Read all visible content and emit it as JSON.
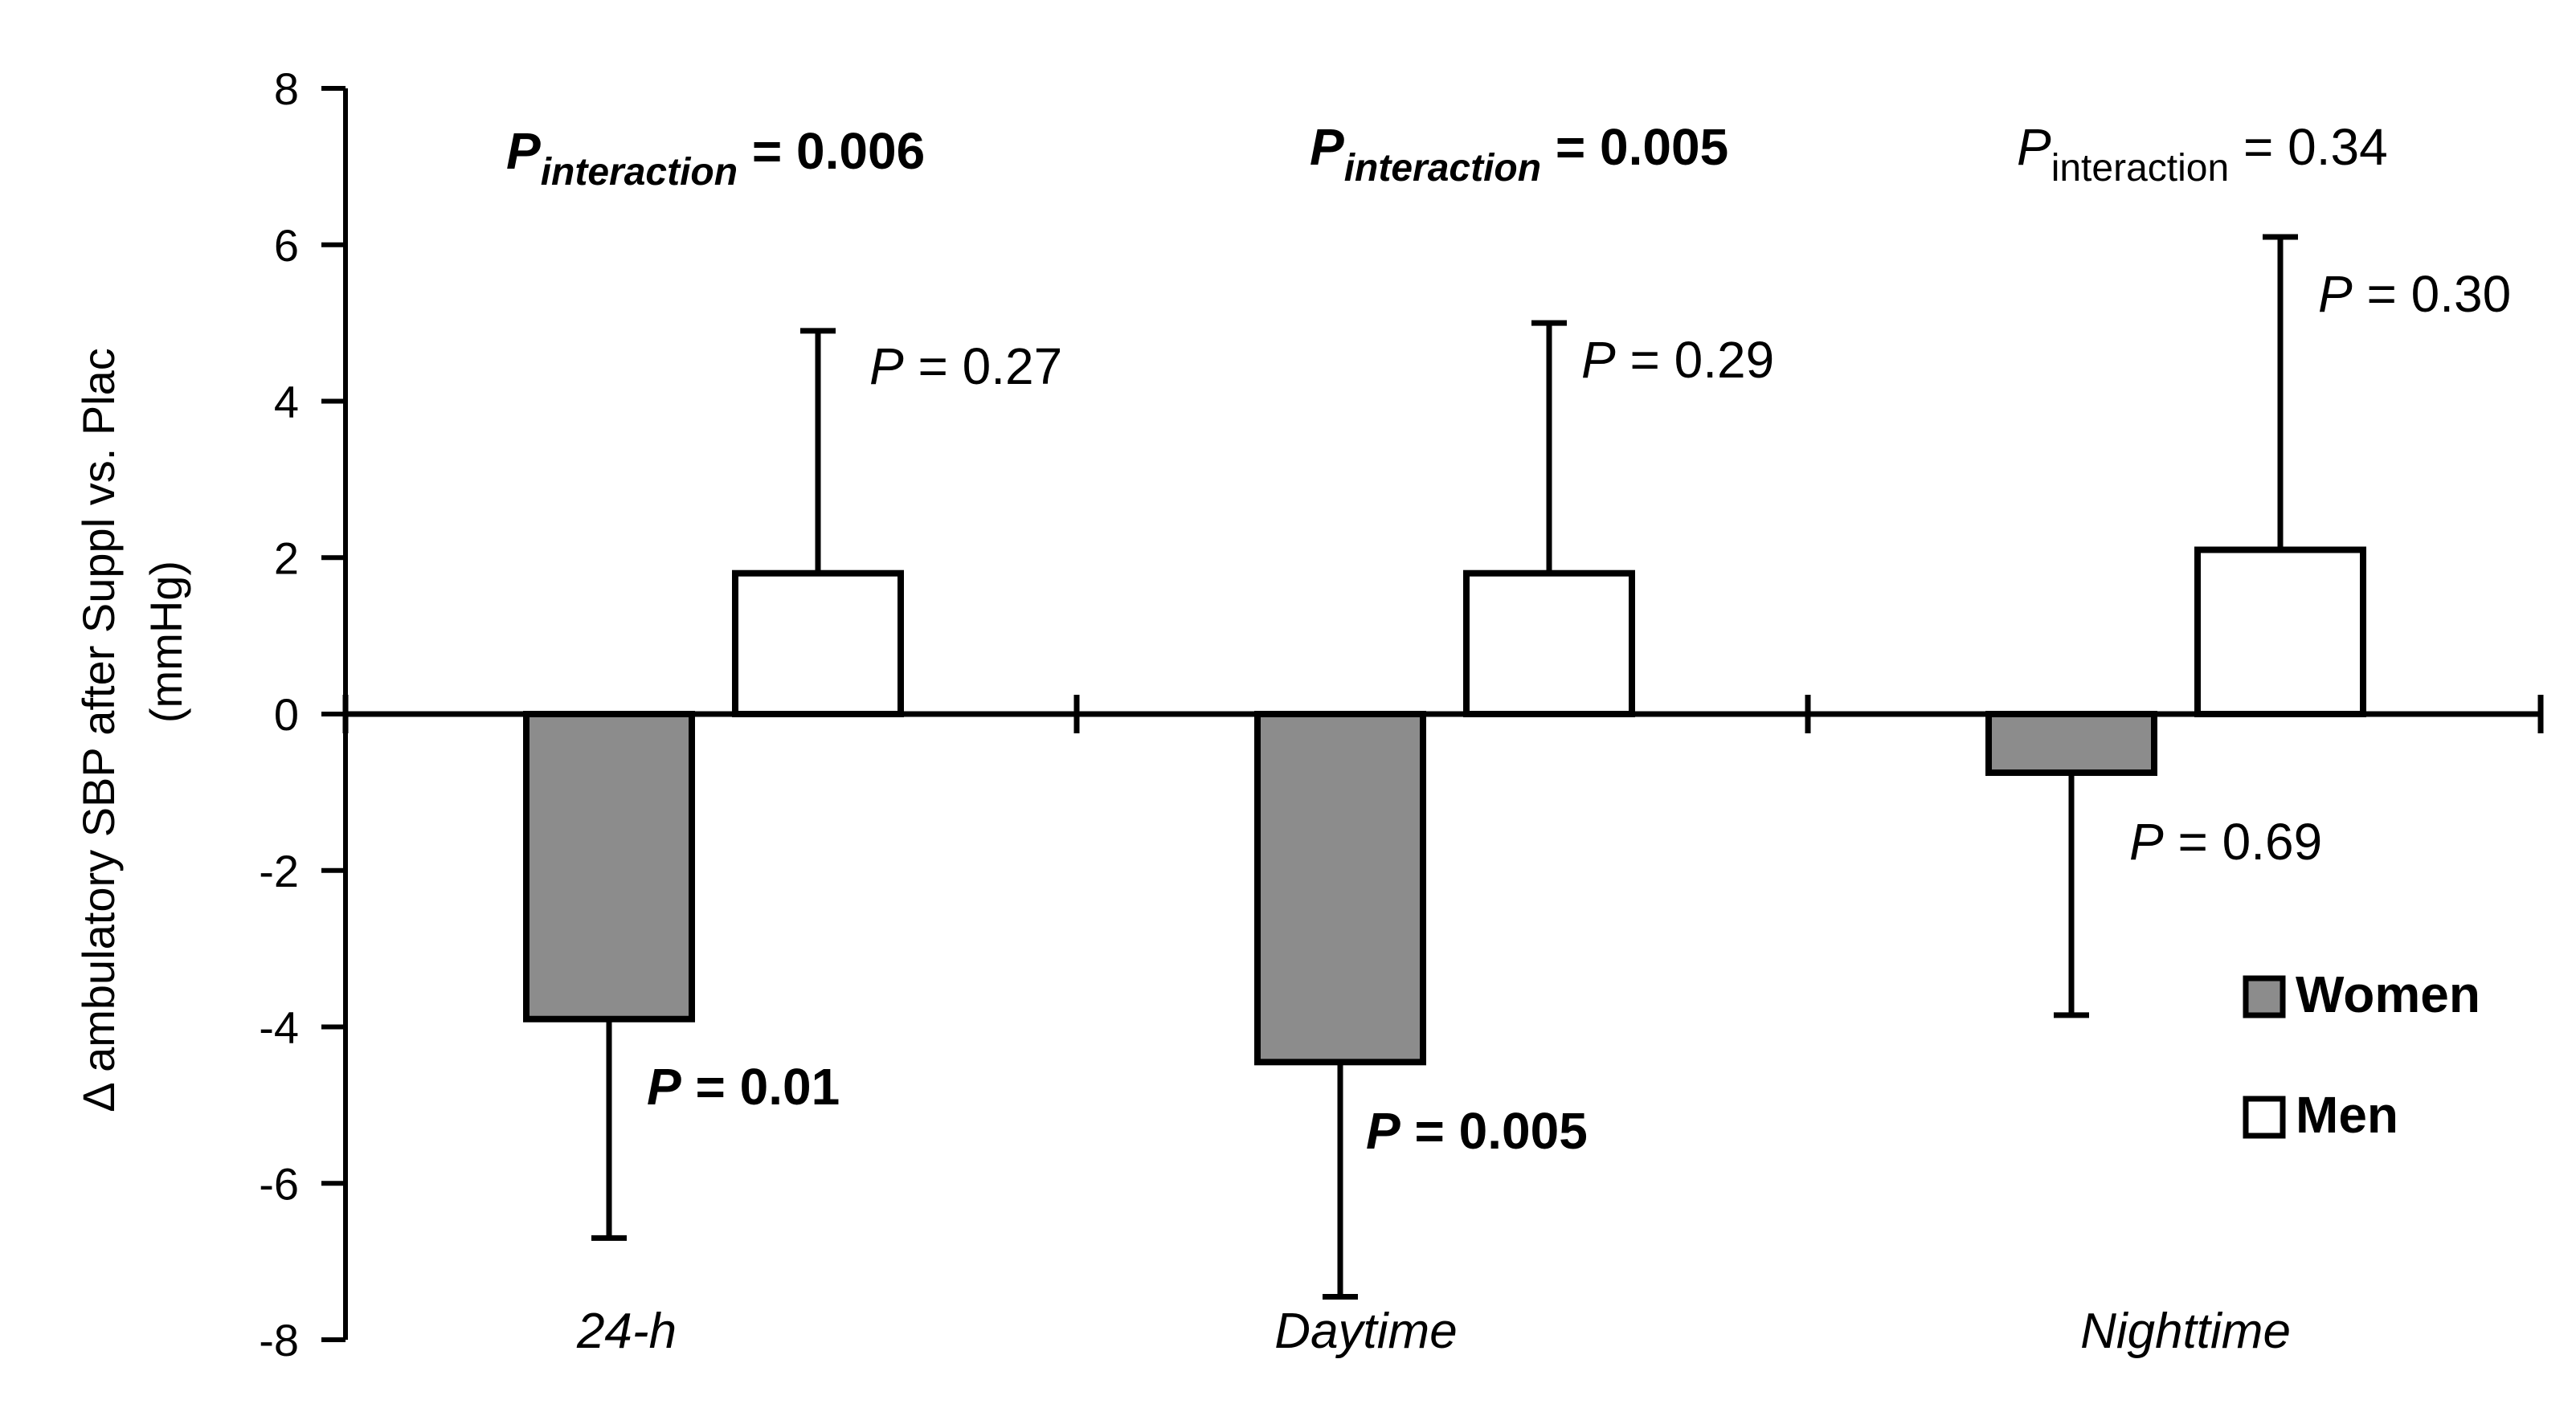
{
  "chart_data": {
    "type": "bar",
    "categories": [
      "24-h",
      "Daytime",
      "Nighttime"
    ],
    "ylabel_line1": "Δ ambulatory SBP after  Suppl vs. Plac",
    "ylabel_line2": "(mmHg)",
    "ylim": [
      -8,
      8
    ],
    "yticks": [
      8,
      6,
      4,
      2,
      0,
      -2,
      -4,
      -6,
      -8
    ],
    "ytick_labels": [
      "8",
      "6",
      "4",
      "2",
      "0",
      "-2",
      "-4",
      "-6",
      "-8"
    ],
    "series": [
      {
        "name": "Women",
        "color": "#8c8c8c",
        "values": [
          -3.9,
          -4.45,
          -0.75
        ],
        "error": [
          2.8,
          3.0,
          3.1
        ]
      },
      {
        "name": "Men",
        "color": "#ffffff",
        "values": [
          1.8,
          1.8,
          2.1
        ],
        "error": [
          3.1,
          3.2,
          4.0
        ]
      }
    ],
    "legend": {
      "position": "bottom-right",
      "items": [
        "Women",
        "Men"
      ]
    },
    "interaction": [
      {
        "p_letter": "P",
        "sub": "interaction",
        "text": " = 0.006",
        "bold": true
      },
      {
        "p_letter": "P",
        "sub": "interaction",
        "text": " = 0.005",
        "bold": true
      },
      {
        "p_letter": "P",
        "sub": "interaction",
        "text": " = 0.34",
        "bold": false
      }
    ],
    "women_p": [
      {
        "p_letter": "P",
        "text": " = 0.01",
        "bold": true
      },
      {
        "p_letter": "P",
        "text": " = 0.005",
        "bold": true
      },
      {
        "p_letter": "P",
        "text": " = 0.69",
        "bold": false
      }
    ],
    "men_p": [
      {
        "p_letter": "P",
        "text": " = 0.27",
        "bold": false
      },
      {
        "p_letter": "P",
        "text": " = 0.29",
        "bold": false
      },
      {
        "p_letter": "P",
        "text": " = 0.30",
        "bold": false
      }
    ],
    "grid": false
  }
}
